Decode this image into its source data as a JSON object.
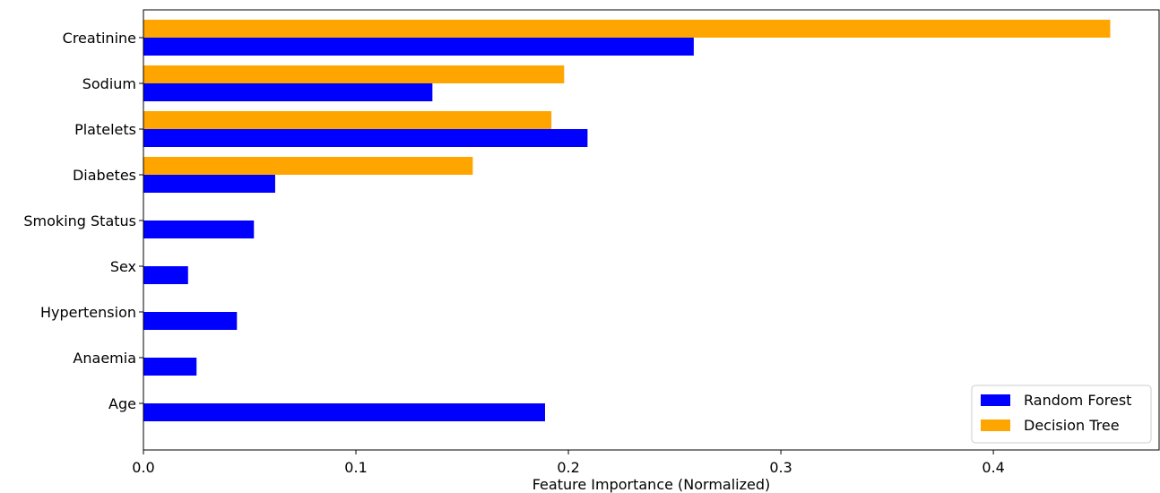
{
  "chart_data": {
    "type": "bar",
    "orientation": "horizontal",
    "categories": [
      "Age",
      "Anaemia",
      "Hypertension",
      "Sex",
      "Smoking Status",
      "Diabetes",
      "Platelets",
      "Sodium",
      "Creatinine"
    ],
    "series": [
      {
        "name": "Random Forest",
        "color": "#0000ff",
        "values": [
          0.189,
          0.025,
          0.044,
          0.021,
          0.052,
          0.062,
          0.209,
          0.136,
          0.259
        ]
      },
      {
        "name": "Decision Tree",
        "color": "#ffa500",
        "values": [
          0,
          0,
          0,
          0,
          0,
          0.155,
          0.192,
          0.198,
          0.455
        ]
      }
    ],
    "xlabel": "Feature Importance (Normalized)",
    "ylabel": "",
    "xlim": [
      0,
      0.478
    ],
    "xticks": [
      0.0,
      0.1,
      0.2,
      0.3,
      0.4
    ],
    "xtick_labels": [
      "0.0",
      "0.1",
      "0.2",
      "0.3",
      "0.4"
    ],
    "grid": false,
    "legend_position": "lower-right"
  }
}
